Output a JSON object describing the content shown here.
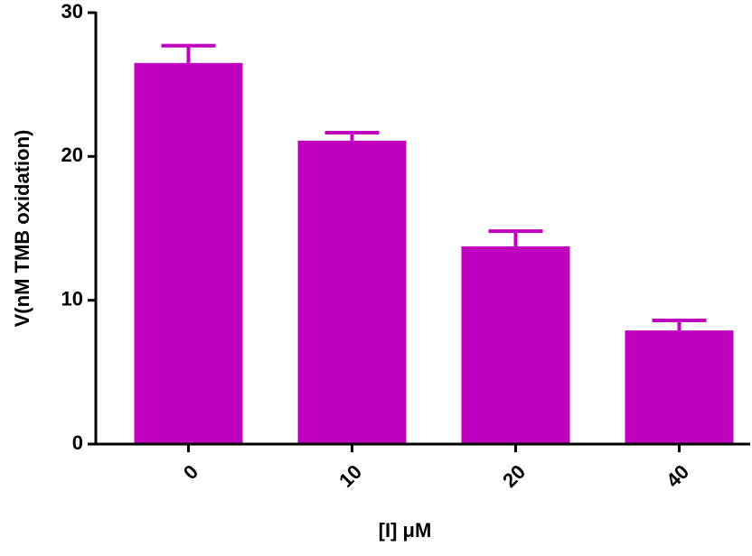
{
  "chart_data": {
    "type": "bar",
    "x_label": "[I] μM",
    "y_label": "V(nM TMB oxidation)",
    "categories": [
      "0",
      "10",
      "20",
      "40"
    ],
    "values": [
      26.5,
      21.1,
      13.75,
      7.9
    ],
    "errors": [
      1.2,
      0.55,
      1.05,
      0.7
    ],
    "color": "#bf00bf",
    "ylim": [
      0,
      30
    ],
    "yticks": [
      0,
      10,
      20,
      30
    ],
    "grid": false
  }
}
